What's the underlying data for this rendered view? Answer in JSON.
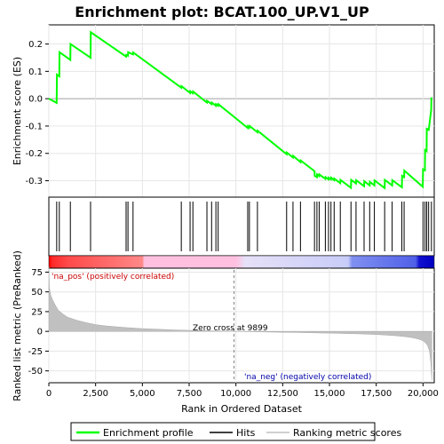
{
  "chart_data": {
    "type": "line",
    "title": "Enrichment plot: BCAT.100_UP.V1_UP",
    "xlabel": "Rank in Ordered Dataset",
    "ylabel_top": "Enrichment score (ES)",
    "ylabel_bottom": "Ranked list metric (PreRanked)",
    "xlim": [
      0,
      20600
    ],
    "x_ticks": [
      0,
      2500,
      5000,
      7500,
      10000,
      12500,
      15000,
      17500,
      20000
    ],
    "x_tick_labels": [
      "0",
      "2,500",
      "5,000",
      "7,500",
      "10,000",
      "12,500",
      "15,000",
      "17,500",
      "20,000"
    ],
    "es_ylim": [
      -0.36,
      0.27
    ],
    "es_ticks": [
      0.2,
      0.1,
      0.0,
      -0.1,
      -0.2,
      -0.3
    ],
    "es_tick_labels": [
      "0.2",
      "0.1",
      "0.0",
      "-0.1",
      "-0.2",
      "-0.3"
    ],
    "metric_ylim": [
      -65,
      80
    ],
    "metric_ticks": [
      75,
      50,
      25,
      0,
      -25,
      -50
    ],
    "metric_tick_labels": [
      "75",
      "50",
      "25",
      "0",
      "-25",
      "-50"
    ],
    "zero_cross_rank": 9899,
    "zero_cross_label": "Zero cross at 9899",
    "pos_label": "'na_pos' (positively correlated)",
    "neg_label": "'na_neg' (negatively correlated)",
    "legend": [
      {
        "name": "Enrichment profile",
        "color": "#00ff00"
      },
      {
        "name": "Hits",
        "color": "#000000"
      },
      {
        "name": "Ranking metric scores",
        "color": "#c0c0c0"
      }
    ],
    "colors": {
      "es_line": "#00ff00",
      "pos_band": "#ff0000",
      "neg_band": "#0000ff",
      "metric_fill": "#c0c0c0",
      "pos_text": "#cc0000",
      "neg_text": "#0000aa"
    },
    "series": [
      {
        "name": "Enrichment profile",
        "x": [
          0,
          420,
          430,
          560,
          570,
          1150,
          1160,
          2230,
          2240,
          4130,
          4140,
          4230,
          4240,
          4500,
          4510,
          7080,
          7090,
          7550,
          7560,
          7700,
          7710,
          8450,
          8460,
          8700,
          8710,
          8930,
          8940,
          9050,
          9060,
          10630,
          10640,
          10720,
          10730,
          11150,
          11160,
          12710,
          12720,
          13050,
          13060,
          13450,
          13460,
          14200,
          14210,
          14330,
          14340,
          14450,
          14460,
          14780,
          14790,
          14950,
          14960,
          15080,
          15090,
          15250,
          15260,
          15580,
          15590,
          16150,
          16160,
          16420,
          16430,
          16850,
          16860,
          17150,
          17160,
          17400,
          17410,
          17950,
          17960,
          18350,
          18360,
          18870,
          18880,
          18990,
          19000,
          19990,
          20000,
          20100,
          20110,
          20190,
          20200,
          20290,
          20300,
          20440,
          20450
        ],
        "y": [
          0.0,
          -0.015,
          0.088,
          0.082,
          0.17,
          0.142,
          0.2,
          0.15,
          0.243,
          0.154,
          0.16,
          0.157,
          0.17,
          0.162,
          0.169,
          0.04,
          0.046,
          0.021,
          0.027,
          0.02,
          0.026,
          -0.014,
          -0.008,
          -0.02,
          -0.014,
          -0.026,
          -0.02,
          -0.026,
          -0.02,
          -0.107,
          -0.101,
          -0.106,
          -0.1,
          -0.123,
          -0.117,
          -0.203,
          -0.197,
          -0.215,
          -0.209,
          -0.232,
          -0.226,
          -0.265,
          -0.282,
          -0.287,
          -0.277,
          -0.283,
          -0.277,
          -0.293,
          -0.287,
          -0.295,
          -0.289,
          -0.295,
          -0.289,
          -0.298,
          -0.292,
          -0.309,
          -0.297,
          -0.326,
          -0.297,
          -0.31,
          -0.298,
          -0.32,
          -0.302,
          -0.317,
          -0.304,
          -0.317,
          -0.299,
          -0.327,
          -0.297,
          -0.317,
          -0.298,
          -0.324,
          -0.282,
          -0.287,
          -0.263,
          -0.322,
          -0.258,
          -0.262,
          -0.188,
          -0.192,
          -0.11,
          -0.113,
          -0.117,
          -0.04,
          0.005
        ]
      },
      {
        "name": "Ranked list metric",
        "x": [
          0,
          30,
          100,
          200,
          350,
          500,
          750,
          1000,
          1500,
          2000,
          2500,
          3000,
          3500,
          4000,
          4500,
          5000,
          5500,
          6000,
          6500,
          7000,
          7500,
          8000,
          8500,
          9000,
          9500,
          9899,
          10500,
          11000,
          11500,
          12000,
          12500,
          13000,
          13500,
          14000,
          14500,
          15000,
          15500,
          16000,
          16500,
          17000,
          17500,
          18000,
          18500,
          19000,
          19300,
          19600,
          19800,
          20000,
          20150,
          20250,
          20350,
          20420,
          20470
        ],
        "y": [
          82,
          55,
          46,
          40,
          33,
          27,
          22,
          18,
          14,
          11,
          8.5,
          7,
          6,
          5,
          4.2,
          3.5,
          3,
          2.5,
          2,
          1.6,
          1.3,
          1,
          0.7,
          0.4,
          0.2,
          0,
          -0.3,
          -0.5,
          -0.7,
          -0.9,
          -1.1,
          -1.3,
          -1.5,
          -1.7,
          -2,
          -2.2,
          -2.5,
          -2.8,
          -3.1,
          -3.5,
          -4,
          -4.6,
          -5.4,
          -6.5,
          -7.5,
          -8.8,
          -10,
          -12,
          -15,
          -18,
          -25,
          -40,
          -62
        ]
      }
    ],
    "hits": [
      420,
      560,
      1150,
      2230,
      4130,
      4230,
      4500,
      7080,
      7550,
      7700,
      8450,
      8700,
      8930,
      9050,
      10630,
      10720,
      11150,
      12710,
      13050,
      13450,
      14200,
      14330,
      14450,
      14780,
      14950,
      15080,
      15250,
      15580,
      16150,
      16420,
      16850,
      17150,
      17400,
      17950,
      18350,
      18870,
      18990,
      20000,
      20110,
      20200,
      20300,
      20450
    ],
    "color_band_stops": [
      {
        "rank": 0,
        "color": "#ff0000"
      },
      {
        "rank": 200,
        "color": "#ff2b2b"
      },
      {
        "rank": 1000,
        "color": "#ff4a4a"
      },
      {
        "rank": 2500,
        "color": "#ff6161"
      },
      {
        "rank": 5000,
        "color": "#ff8888"
      },
      {
        "rank": 5100,
        "color": "#ffc0e0"
      },
      {
        "rank": 10000,
        "color": "#ffc0e0"
      },
      {
        "rank": 10500,
        "color": "#e6e0f8"
      },
      {
        "rank": 16000,
        "color": "#c8ccf8"
      },
      {
        "rank": 16200,
        "color": "#8090f0"
      },
      {
        "rank": 19600,
        "color": "#5060e8"
      },
      {
        "rank": 19800,
        "color": "#1010d0"
      },
      {
        "rank": 20600,
        "color": "#0000c0"
      }
    ]
  }
}
